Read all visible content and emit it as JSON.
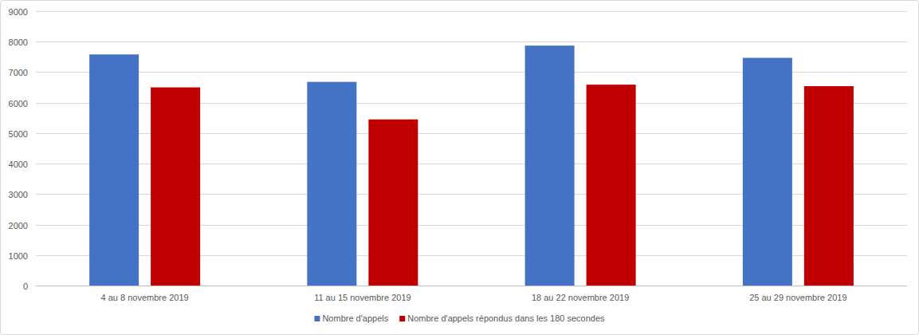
{
  "chart_data": {
    "type": "bar",
    "categories": [
      "4 au 8 novembre 2019",
      "11 au 15 novembre 2019",
      "18 au 22 novembre 2019",
      "25 au 29 novembre 2019"
    ],
    "series": [
      {
        "name": "Nombre d'appels",
        "color": "#4472c4",
        "values": [
          7580,
          6680,
          7870,
          7470
        ]
      },
      {
        "name": "Nombre d'appels répondus dans les 180 secondes",
        "color": "#c00000",
        "values": [
          6500,
          5450,
          6590,
          6540
        ]
      }
    ],
    "ylim": [
      0,
      9000
    ],
    "yticks": [
      0,
      1000,
      2000,
      3000,
      4000,
      5000,
      6000,
      7000,
      8000,
      9000
    ],
    "grid": true,
    "legend": "bottom"
  }
}
